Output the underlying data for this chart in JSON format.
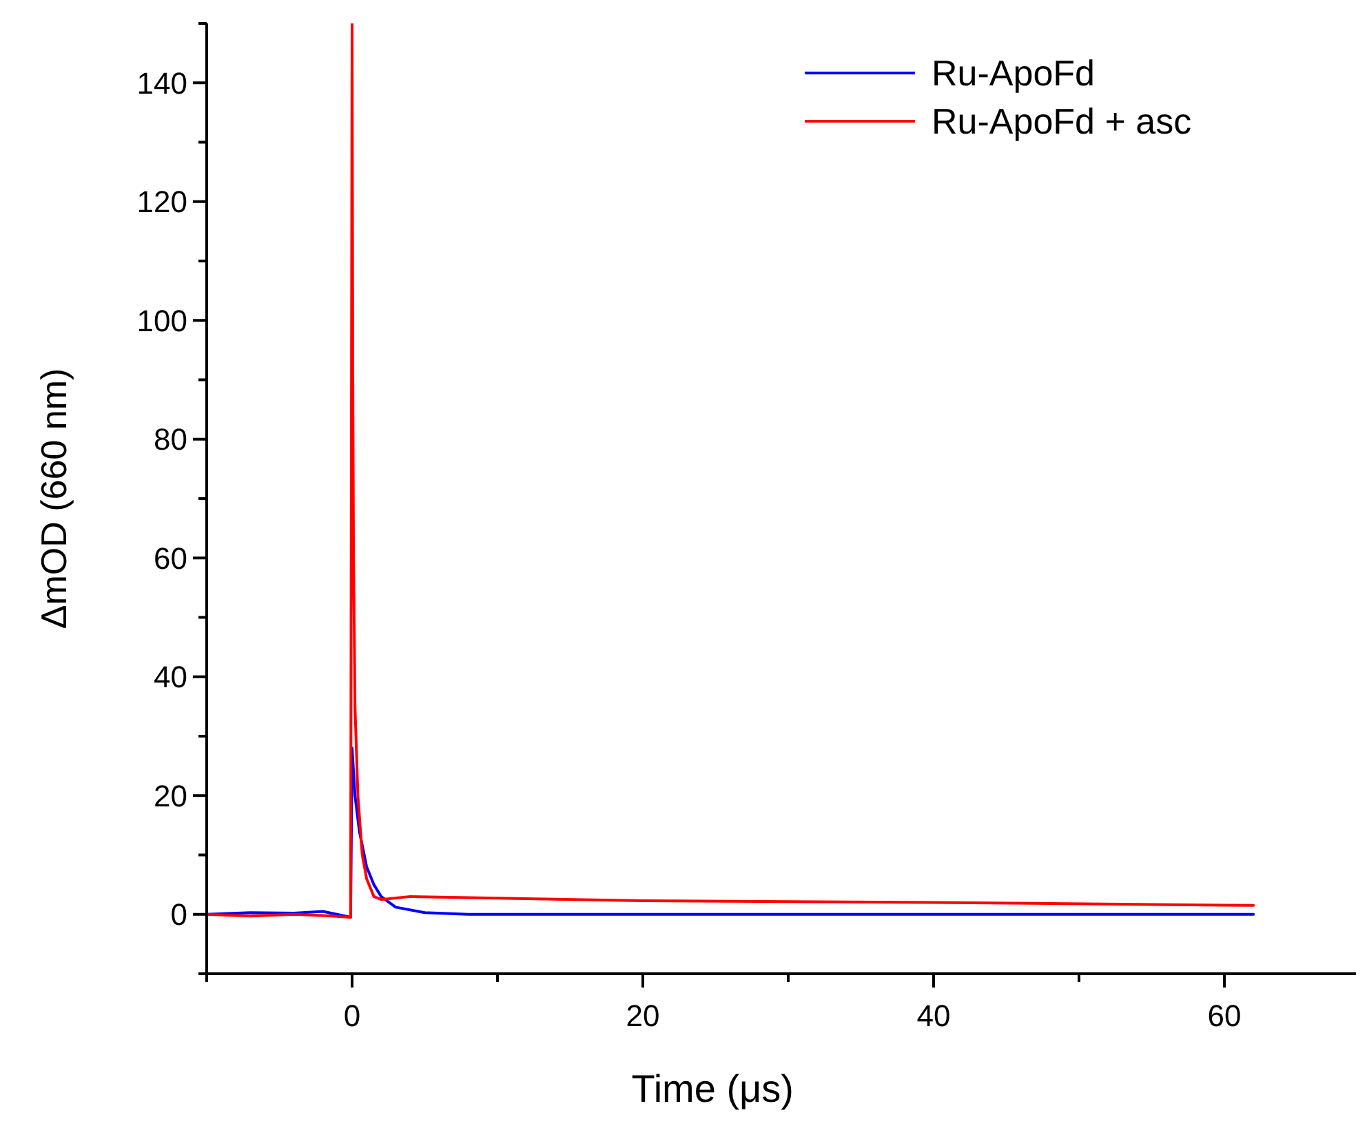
{
  "chart_data": {
    "type": "line",
    "xlabel": "Time (μs)",
    "ylabel": "ΔmOD (660 nm)",
    "xlim": [
      -10,
      70
    ],
    "xticks": [
      {
        "value": -10,
        "label": null
      },
      0,
      {
        "value": 10,
        "label": null
      },
      20,
      {
        "value": 30,
        "label": null
      },
      40,
      {
        "value": 50,
        "label": null
      },
      60,
      {
        "value": 70,
        "label": null
      }
    ],
    "ylim": [
      -10,
      150
    ],
    "yticks": [
      {
        "value": -10,
        "label": null
      },
      0,
      {
        "value": 10,
        "label": null
      },
      20,
      {
        "value": 30,
        "label": null
      },
      40,
      {
        "value": 50,
        "label": null
      },
      60,
      {
        "value": 70,
        "label": null
      },
      80,
      {
        "value": 90,
        "label": null
      },
      100,
      {
        "value": 110,
        "label": null
      },
      120,
      {
        "value": 130,
        "label": null
      },
      140,
      {
        "value": 150,
        "label": null
      }
    ],
    "legend": "top right",
    "line_style": "solid",
    "series": [
      {
        "name": "Ru-ApoFd",
        "color": "#0000ff",
        "x": [
          -10,
          -7,
          -4,
          -2,
          -0.1,
          0,
          0.2,
          0.5,
          1,
          1.5,
          2,
          3,
          5,
          8,
          15,
          25,
          40,
          50,
          62
        ],
        "values": [
          0,
          0.3,
          0.2,
          0.5,
          -0.5,
          28,
          20,
          14,
          8,
          5,
          3,
          1.2,
          0.3,
          0,
          0,
          0,
          0,
          0,
          0
        ]
      },
      {
        "name": "Ru-ApoFd + asc",
        "color": "#ff0000",
        "x": [
          -10,
          -7,
          -4,
          -2,
          -0.1,
          0,
          0.05,
          0.1,
          0.2,
          0.4,
          0.7,
          1,
          1.5,
          2,
          4,
          8,
          20,
          40,
          62
        ],
        "values": [
          0,
          -0.3,
          0,
          -0.2,
          -0.5,
          150,
          90,
          60,
          35,
          20,
          10,
          6,
          3,
          2.5,
          3,
          2.8,
          2.3,
          2,
          1.5
        ]
      }
    ]
  }
}
